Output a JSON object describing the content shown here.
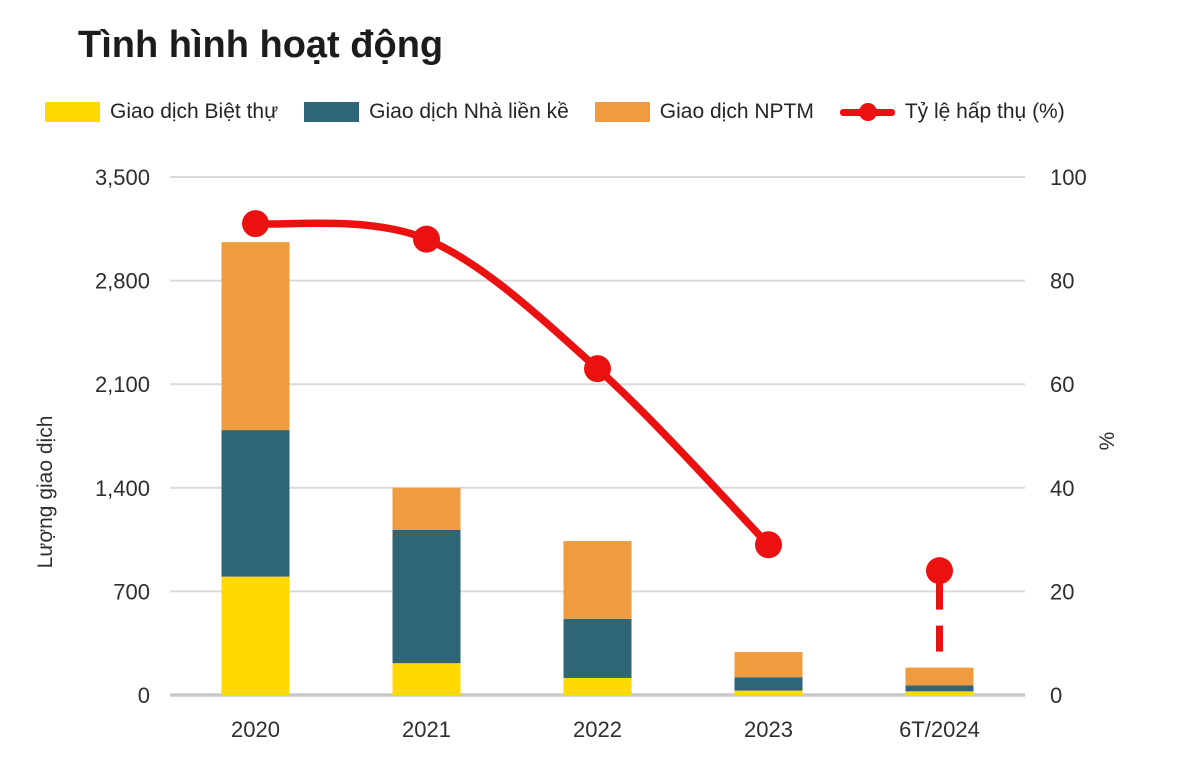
{
  "title": "Tình hình hoạt động",
  "legend": [
    {
      "label": "Giao dịch Biệt thự",
      "color": "#FFD900",
      "marker": "swatch"
    },
    {
      "label": "Giao dịch Nhà liền kề",
      "color": "#2E6577",
      "marker": "swatch"
    },
    {
      "label": "Giao dịch NPTM",
      "color": "#EF9B40",
      "marker": "swatch"
    },
    {
      "label": "Tỷ lệ hấp thụ (%)",
      "color": "#EC1111",
      "marker": "line-dot"
    }
  ],
  "chart_data": {
    "type": "bar",
    "subtype": "stacked-columns-with-percentage-line",
    "title": "Tình hình hoạt động",
    "categories": [
      "2020",
      "2021",
      "2022",
      "2023",
      "6T/2024"
    ],
    "series": [
      {
        "name": "Giao dịch Biệt thự",
        "color": "#FFD900",
        "values": [
          800,
          215,
          115,
          30,
          25
        ]
      },
      {
        "name": "Giao dịch Nhà liền kề",
        "color": "#2E6577",
        "values": [
          990,
          900,
          400,
          90,
          40
        ]
      },
      {
        "name": "Giao dịch NPTM",
        "color": "#EF9B40",
        "values": [
          1270,
          285,
          525,
          170,
          120
        ]
      }
    ],
    "stack_totals": [
      3060,
      1400,
      1040,
      290,
      185
    ],
    "line_series": {
      "name": "Tỷ lệ hấp thụ (%)",
      "color": "#EC1111",
      "values": [
        91,
        88,
        63,
        29,
        24
      ],
      "solid_points": 4,
      "last_point_style": "isolated-dot-with-dashed-drop-line"
    },
    "y_left": {
      "label": "Lượng giao dịch",
      "min": 0,
      "max": 3500,
      "ticks": [
        0,
        700,
        1400,
        2100,
        2800,
        3500
      ],
      "tick_labels": [
        "0",
        "700",
        "1,400",
        "2,100",
        "2,800",
        "3,500"
      ]
    },
    "y_right": {
      "label": "%",
      "min": 0,
      "max": 100,
      "ticks": [
        0,
        20,
        40,
        60,
        80,
        100
      ]
    },
    "grid": {
      "show": true,
      "color": "#DADADA",
      "baseline_color": "#C9C9C9"
    },
    "legend_position": "top"
  }
}
